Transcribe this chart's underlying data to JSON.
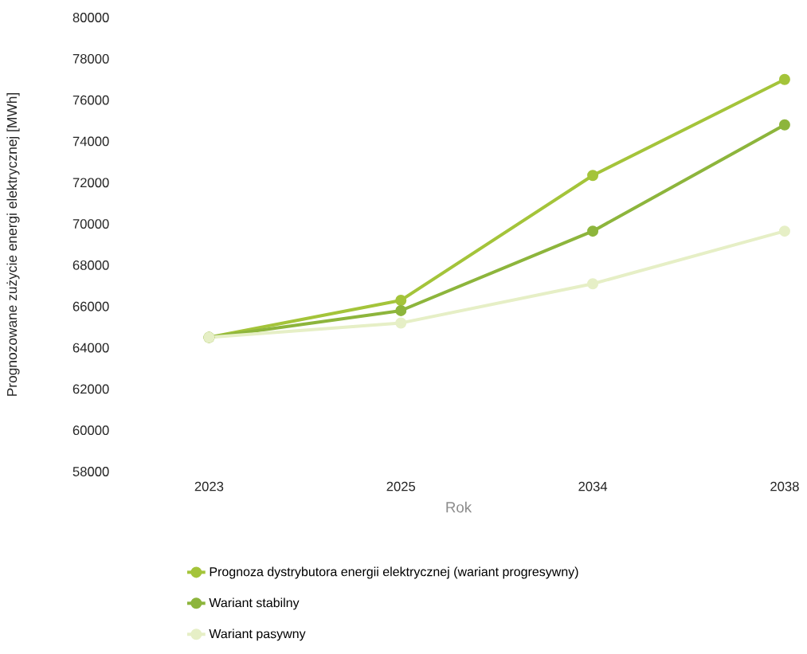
{
  "chart_data": {
    "type": "line",
    "xlabel": "Rok",
    "ylabel": "Prognozowane zużycie energi  elektrycznej [MWh]",
    "categories": [
      "2023",
      "2025",
      "2034",
      "2038"
    ],
    "series": [
      {
        "name": "Prognoza dystrybutora energii elektrycznej (wariant progresywny)",
        "color": "#a4c43a",
        "values": [
          64500,
          66300,
          72350,
          77000
        ]
      },
      {
        "name": "Wariant stabilny",
        "color": "#8db53c",
        "values": [
          64500,
          65800,
          69650,
          74800
        ]
      },
      {
        "name": "Wariant pasywny",
        "color": "#e6efc6",
        "values": [
          64500,
          65200,
          67100,
          69650
        ]
      }
    ],
    "ylim": [
      58000,
      80000
    ],
    "yticks": [
      58000,
      60000,
      62000,
      64000,
      66000,
      68000,
      70000,
      72000,
      74000,
      76000,
      78000,
      80000
    ],
    "marker": "circle",
    "line_style": "solid",
    "legend": "bottom"
  }
}
